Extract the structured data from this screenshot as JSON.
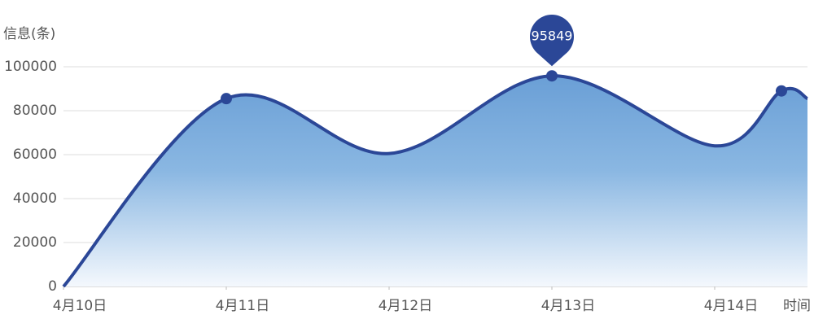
{
  "chart_data": {
    "type": "area",
    "y_label": "信息(条)",
    "x_label": "时间",
    "x": [
      0,
      1,
      2,
      3,
      4,
      4.41,
      4.57
    ],
    "series": [
      {
        "color": "#2b4797",
        "values": [
          0,
          85500,
          60500,
          95849,
          64000,
          89000,
          85500
        ]
      }
    ],
    "xlim": [
      0,
      4.57
    ],
    "xticks": [
      {
        "value": 0,
        "label": "4月10日"
      },
      {
        "value": 1,
        "label": "4月11日"
      },
      {
        "value": 2,
        "label": "4月12日"
      },
      {
        "value": 3,
        "label": "4月13日"
      },
      {
        "value": 4,
        "label": "4月14日"
      }
    ],
    "ylim": [
      0,
      100000
    ],
    "yticks": [
      0,
      20000,
      40000,
      60000,
      80000,
      100000
    ],
    "grid": true
  }
}
